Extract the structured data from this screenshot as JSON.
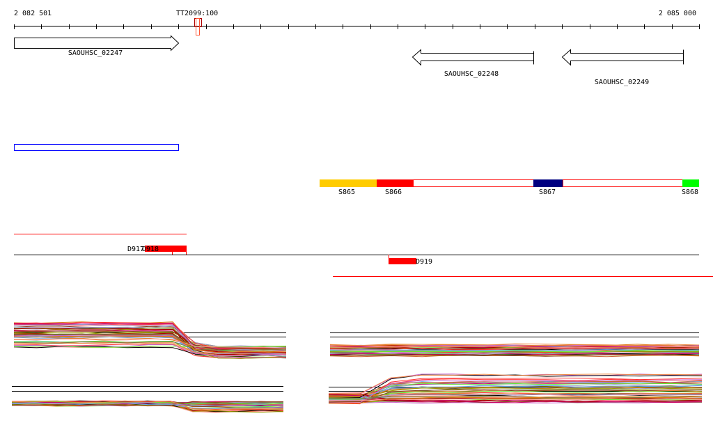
{
  "ruler": {
    "start_label": "2 082 501",
    "end_label": "2 085 000",
    "tick_count": 25
  },
  "marker": {
    "label": "TT2099:100",
    "color": "#b00000"
  },
  "genes": [
    {
      "name": "SAOUHSC_02247",
      "strand": "+"
    },
    {
      "name": "SAOUHSC_02248",
      "strand": "-"
    },
    {
      "name": "SAOUHSC_02249",
      "strand": "-"
    }
  ],
  "segments": [
    {
      "label": "S865",
      "color": "#ffcc00"
    },
    {
      "label": "S866",
      "color": "#ff0000"
    },
    {
      "label": "S867",
      "color": "#000080"
    },
    {
      "label": "S868",
      "color": "#00ff00"
    }
  ],
  "features": [
    {
      "label": "D917"
    },
    {
      "label": "D918"
    },
    {
      "label": "D919"
    }
  ],
  "colors": {
    "feature": "#ff0000",
    "outline_blue": "#0000ff",
    "axis": "#000000"
  },
  "profile_palette": [
    "#000000",
    "#cc6633",
    "#999900",
    "#ff3333",
    "#cc0066",
    "#66aaee",
    "#66ee33",
    "#ee8844",
    "#884422",
    "#9999cc",
    "#aa0000",
    "#cc66cc",
    "#777744",
    "#ff9999",
    "#dd7711"
  ]
}
